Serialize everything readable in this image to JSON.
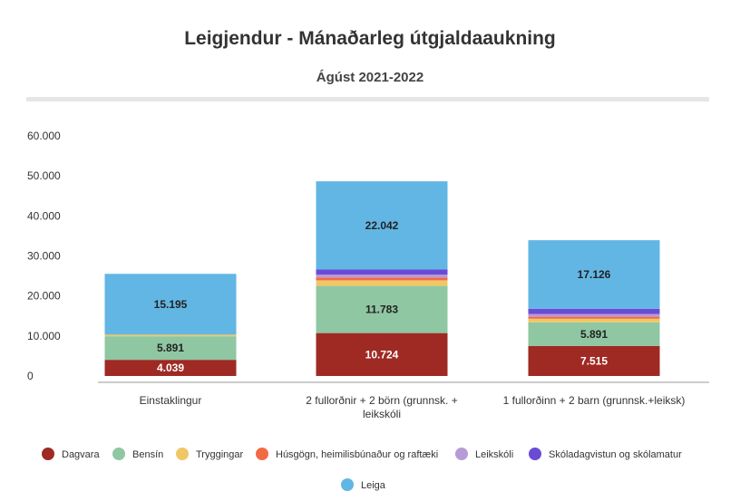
{
  "chart_data": {
    "type": "bar",
    "stacked": true,
    "title": "Leigjendur - Mánaðarleg útgjaldaaukning",
    "subtitle": "Ágúst 2021-2022",
    "ylim": [
      0,
      60000
    ],
    "yticks": [
      0,
      10000,
      20000,
      30000,
      40000,
      50000,
      60000
    ],
    "ytick_labels": [
      "0",
      "10.000",
      "20.000",
      "30.000",
      "40.000",
      "50.000",
      "60.000"
    ],
    "grid": false,
    "legend_position": "bottom",
    "categories": [
      [
        "Einstaklingur"
      ],
      [
        "2 fullorðnir + 2 börn (grunnsk. +",
        "leikskóli"
      ],
      [
        "1 fullorðinn + 2 barn (grunnsk.+leiksk)"
      ]
    ],
    "series": [
      {
        "name": "Dagvara",
        "color": "#9e2a23",
        "values": [
          4039,
          10724,
          7515
        ],
        "labels": [
          "4.039",
          "10.724",
          "7.515"
        ],
        "label_style": "light"
      },
      {
        "name": "Bensín",
        "color": "#8fc7a2",
        "values": [
          5891,
          11783,
          5891
        ],
        "labels": [
          "5.891",
          "11.783",
          "5.891"
        ],
        "label_style": "dark"
      },
      {
        "name": "Tryggingar",
        "color": "#f1c766",
        "values": [
          400,
          1400,
          900
        ],
        "labels": [
          "",
          "",
          ""
        ]
      },
      {
        "name": "Húsgögn, heimilisbúnaður og  raftæki",
        "color": "#f26a44",
        "values": [
          0,
          700,
          500
        ],
        "labels": [
          "",
          "",
          ""
        ]
      },
      {
        "name": "Leikskóli",
        "color": "#b79bd6",
        "values": [
          0,
          700,
          700
        ],
        "labels": [
          "",
          "",
          ""
        ]
      },
      {
        "name": "Skóladagvistun og skólamatur",
        "color": "#6a4bd6",
        "values": [
          0,
          1300,
          1300
        ],
        "labels": [
          "",
          "",
          ""
        ]
      },
      {
        "name": "Leiga",
        "color": "#62b6e4",
        "values": [
          15195,
          22042,
          17126
        ],
        "labels": [
          "15.195",
          "22.042",
          "17.126"
        ],
        "label_style": "dark"
      }
    ]
  }
}
